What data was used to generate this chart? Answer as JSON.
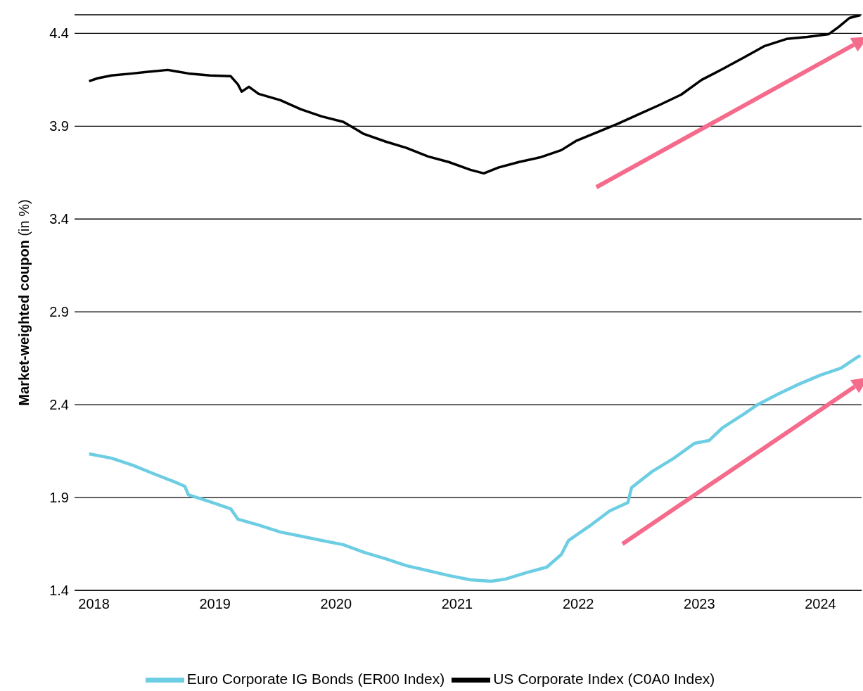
{
  "chart_data": {
    "type": "line",
    "ylabel": "Market-weighted coupon (in %)",
    "xlim": [
      2017.84,
      2024.34
    ],
    "xticks": [
      2018,
      2019,
      2020,
      2021,
      2022,
      2023,
      2024
    ],
    "ylim": [
      1.4,
      4.5
    ],
    "yticks": [
      1.4,
      1.9,
      2.4,
      2.9,
      3.4,
      3.9,
      4.4
    ],
    "grid": "y",
    "legend": "bottom",
    "marker": "none",
    "line_style": "solid",
    "series": [
      {
        "name": "Euro Corporate IG Bonds (ER00 Index)",
        "color": "#6dcde3",
        "x": [
          2017.96,
          2018.145,
          2018.32,
          2018.49,
          2018.67,
          2018.75,
          2018.78,
          2018.96,
          2019.13,
          2019.19,
          2019.36,
          2019.54,
          2019.71,
          2019.88,
          2020.06,
          2020.23,
          2020.41,
          2020.58,
          2020.76,
          2020.93,
          2021.11,
          2021.28,
          2021.4,
          2021.57,
          2021.74,
          2021.86,
          2021.92,
          2022.09,
          2022.26,
          2022.41,
          2022.44,
          2022.61,
          2022.79,
          2022.96,
          2023.08,
          2023.19,
          2023.37,
          2023.48,
          2023.65,
          2023.82,
          2024.0,
          2024.17,
          2024.3,
          2024.33
        ],
        "values": [
          2.135,
          2.112,
          2.074,
          2.029,
          1.983,
          1.961,
          1.915,
          1.877,
          1.839,
          1.783,
          1.752,
          1.714,
          1.692,
          1.669,
          1.646,
          1.605,
          1.57,
          1.533,
          1.506,
          1.48,
          1.457,
          1.449,
          1.461,
          1.495,
          1.525,
          1.593,
          1.669,
          1.745,
          1.828,
          1.873,
          1.953,
          2.04,
          2.112,
          2.192,
          2.207,
          2.275,
          2.351,
          2.4,
          2.457,
          2.51,
          2.559,
          2.597,
          2.654,
          2.665
        ]
      },
      {
        "name": "US Corporate Index (C0A0 Index)",
        "color": "#000000",
        "x": [
          2017.96,
          2018.03,
          2018.145,
          2018.32,
          2018.435,
          2018.61,
          2018.78,
          2018.96,
          2019.13,
          2019.19,
          2019.22,
          2019.28,
          2019.36,
          2019.54,
          2019.71,
          2019.88,
          2020.06,
          2020.23,
          2020.41,
          2020.58,
          2020.76,
          2020.93,
          2021.11,
          2021.22,
          2021.34,
          2021.51,
          2021.69,
          2021.86,
          2021.98,
          2022.15,
          2022.32,
          2022.5,
          2022.67,
          2022.85,
          2023.02,
          2023.19,
          2023.37,
          2023.54,
          2023.72,
          2023.89,
          2024.07,
          2024.15,
          2024.24,
          2024.33
        ],
        "values": [
          4.142,
          4.158,
          4.173,
          4.184,
          4.192,
          4.203,
          4.184,
          4.173,
          4.169,
          4.124,
          4.086,
          4.112,
          4.074,
          4.04,
          3.991,
          3.953,
          3.923,
          3.858,
          3.817,
          3.783,
          3.737,
          3.707,
          3.665,
          3.646,
          3.677,
          3.707,
          3.733,
          3.771,
          3.82,
          3.866,
          3.911,
          3.964,
          4.014,
          4.07,
          4.15,
          4.207,
          4.271,
          4.332,
          4.37,
          4.381,
          4.396,
          4.434,
          4.483,
          4.498
        ]
      }
    ]
  }
}
